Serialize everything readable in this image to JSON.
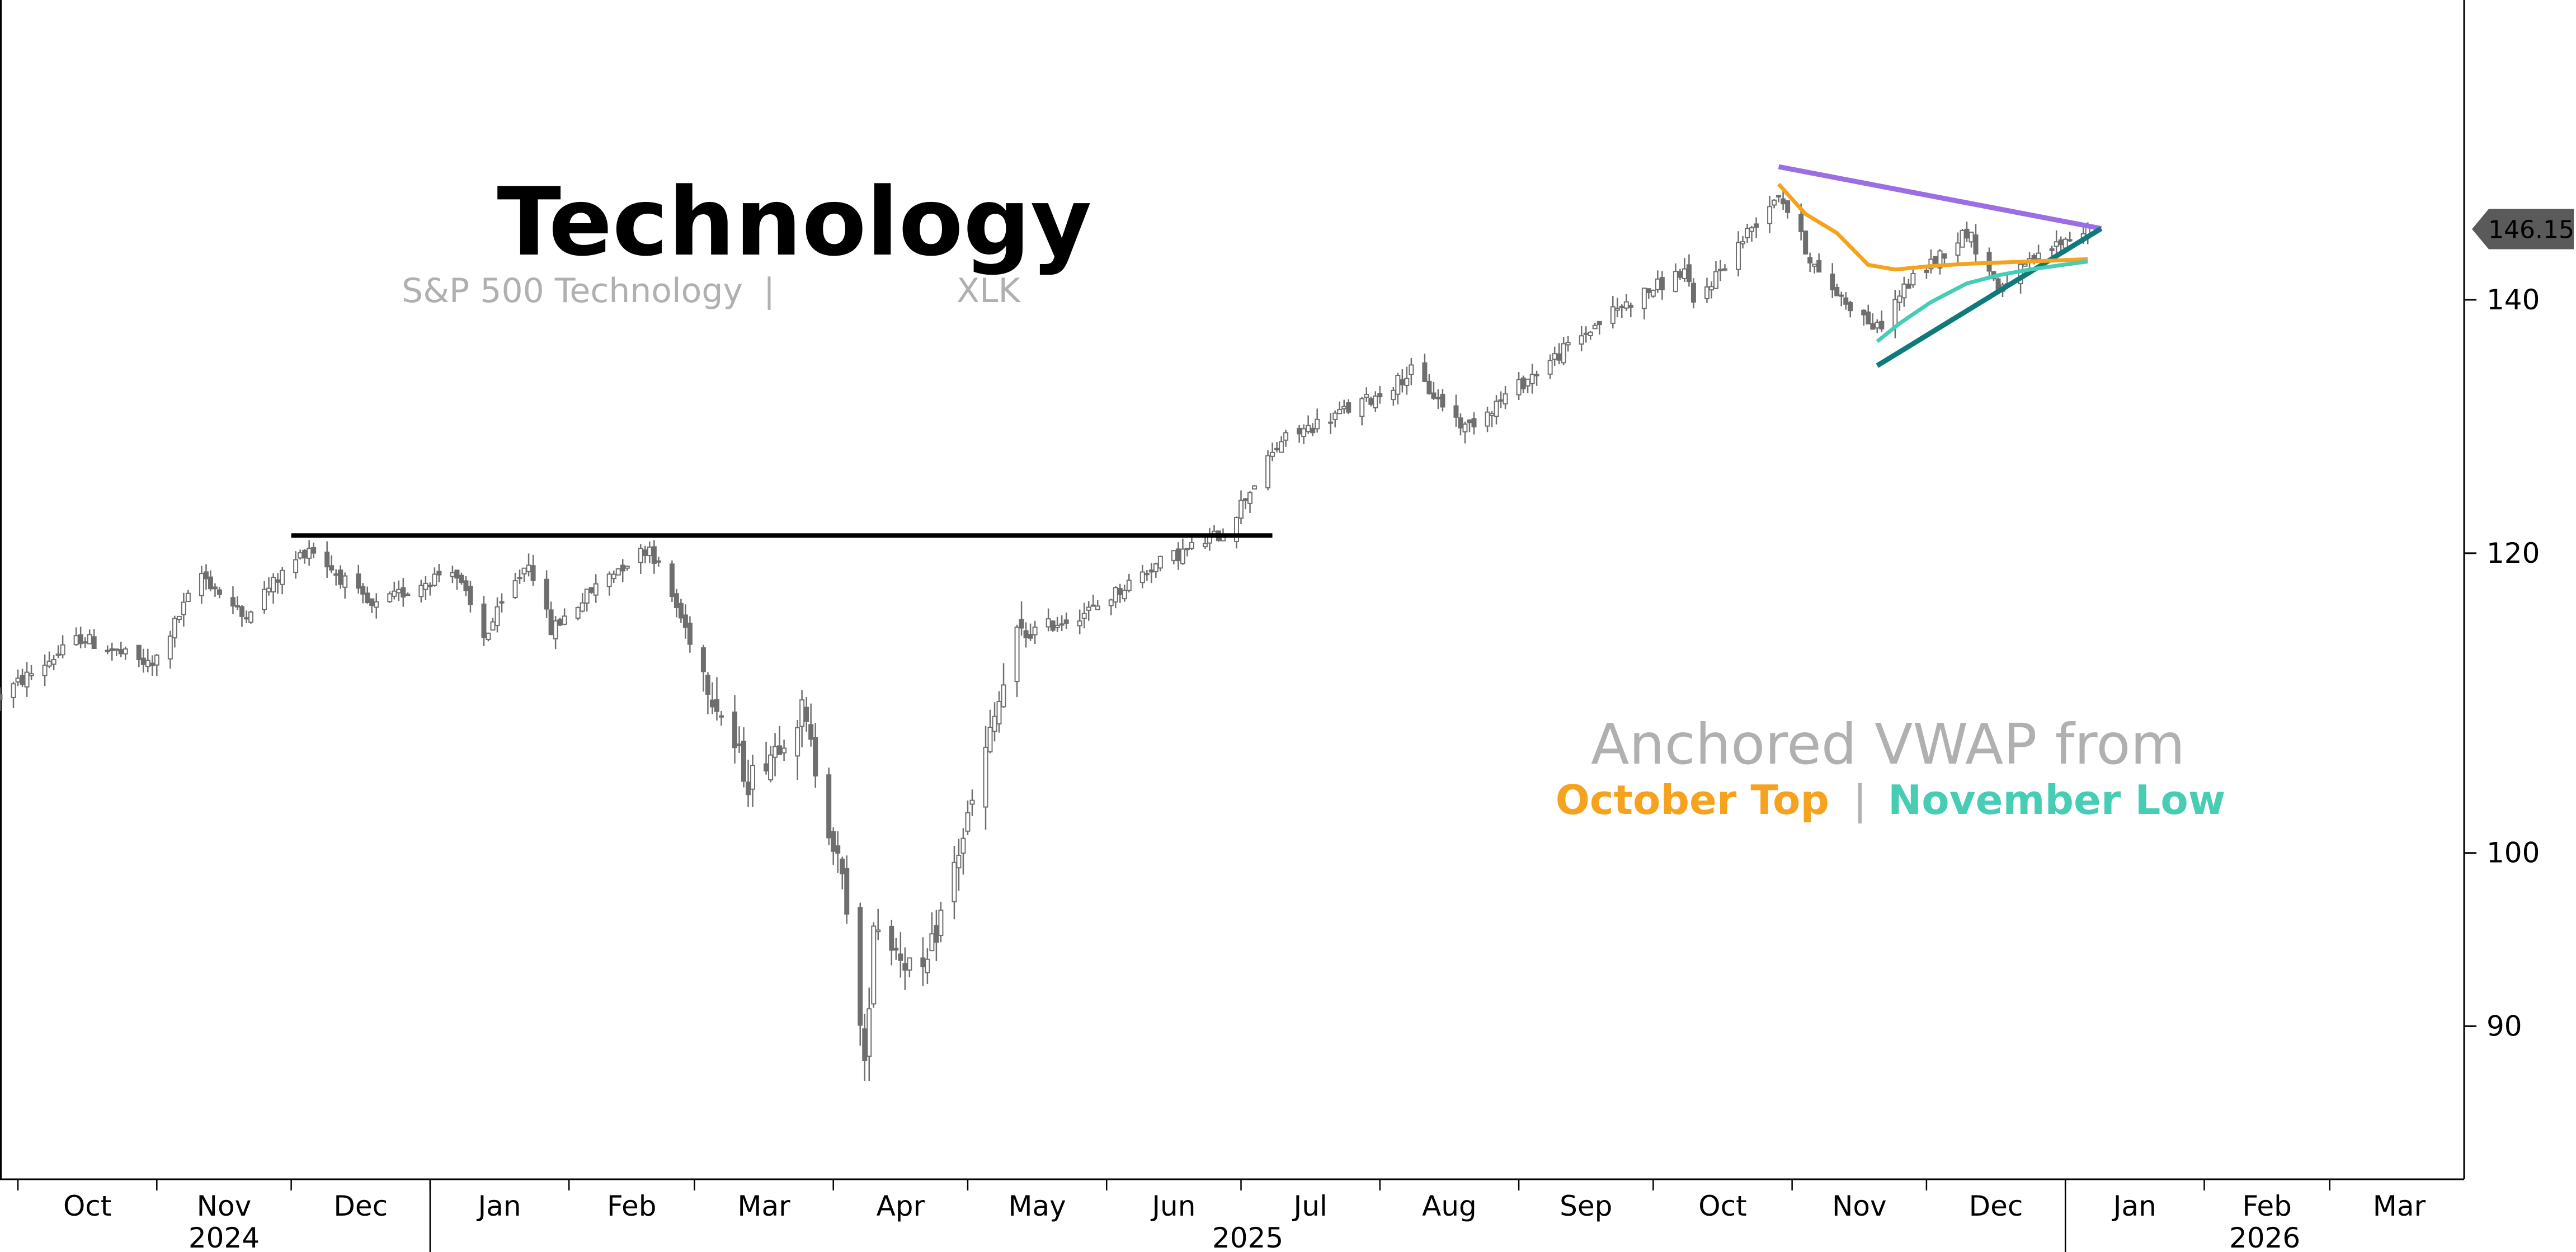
{
  "chart_data": {
    "type": "candlestick",
    "title": "Technology",
    "subtitle": "S&P 500 Technology",
    "subtitle_separator": "|",
    "ticker": "XLK",
    "annotation": {
      "line1": "Anchored VWAP from",
      "series_a": "October Top",
      "separator": "|",
      "series_b": "November Low",
      "color_a": "#f5a21e",
      "color_b": "#46cdb4"
    },
    "last_price_label": "146.15",
    "last_price": 146.15,
    "y_ticks": [
      "90",
      "100",
      "120",
      "140"
    ],
    "y_tick_values": [
      90,
      100,
      120,
      140
    ],
    "y_axis": {
      "scale": "log",
      "range": [
        82,
        168
      ],
      "position": "right"
    },
    "x_month_ticks": [
      "Oct",
      "Nov",
      "Dec",
      "Jan",
      "Feb",
      "Mar",
      "Apr",
      "May",
      "Jun",
      "Jul",
      "Aug",
      "Sep",
      "Oct",
      "Nov",
      "Dec",
      "Jan",
      "Feb",
      "Mar"
    ],
    "x_month_starts": [
      "2024-10-01",
      "2024-11-01",
      "2024-12-01",
      "2025-01-01",
      "2025-02-01",
      "2025-03-01",
      "2025-04-01",
      "2025-05-01",
      "2025-06-01",
      "2025-07-01",
      "2025-08-01",
      "2025-09-01",
      "2025-10-01",
      "2025-11-01",
      "2025-12-01",
      "2026-01-01",
      "2026-02-01",
      "2026-03-01",
      "2026-04-01"
    ],
    "x_year_labels": [
      {
        "label": "2024",
        "from": "2024-10-01",
        "to": "2025-01-01"
      },
      {
        "label": "2025",
        "from": "2025-01-01",
        "to": "2026-01-01"
      },
      {
        "label": "2026",
        "from": "2026-01-01",
        "to": "2026-04-01"
      }
    ],
    "x_range": [
      "2024-09-27",
      "2026-03-31"
    ],
    "grid": false,
    "price_anchors": [
      [
        "2024-09-27",
        110
      ],
      [
        "2024-10-15",
        114
      ],
      [
        "2024-10-31",
        112
      ],
      [
        "2024-11-11",
        118.5
      ],
      [
        "2024-11-20",
        115.5
      ],
      [
        "2024-12-05",
        120.5
      ],
      [
        "2024-12-19",
        116
      ],
      [
        "2025-01-06",
        119
      ],
      [
        "2025-01-13",
        114
      ],
      [
        "2025-01-23",
        119.5
      ],
      [
        "2025-01-28",
        114.5
      ],
      [
        "2025-02-10",
        118.5
      ],
      [
        "2025-02-19",
        120.5
      ],
      [
        "2025-03-04",
        111
      ],
      [
        "2025-03-13",
        104.5
      ],
      [
        "2025-03-25",
        109
      ],
      [
        "2025-04-04",
        97
      ],
      [
        "2025-04-08",
        87.5
      ],
      [
        "2025-04-10",
        96
      ],
      [
        "2025-04-21",
        92.5
      ],
      [
        "2025-05-02",
        103
      ],
      [
        "2025-05-12",
        114
      ],
      [
        "2025-05-29",
        116
      ],
      [
        "2025-06-11",
        119
      ],
      [
        "2025-06-27",
        121.5
      ],
      [
        "2025-07-10",
        128.5
      ],
      [
        "2025-07-31",
        132
      ],
      [
        "2025-08-08",
        134
      ],
      [
        "2025-08-20",
        129.5
      ],
      [
        "2025-09-05",
        134
      ],
      [
        "2025-09-22",
        139
      ],
      [
        "2025-10-08",
        142.5
      ],
      [
        "2025-10-10",
        139.5
      ],
      [
        "2025-10-29",
        149.5
      ],
      [
        "2025-11-07",
        142
      ],
      [
        "2025-11-20",
        137.5
      ],
      [
        "2025-11-26",
        141
      ],
      [
        "2025-12-10",
        146
      ],
      [
        "2025-12-17",
        141
      ],
      [
        "2025-12-31",
        145
      ],
      [
        "2026-01-06",
        146.15
      ]
    ],
    "resistance_line": {
      "level": 121.3,
      "from": "2024-12-01",
      "to": "2025-07-08",
      "color": "#000000"
    },
    "triangle_upper": {
      "from": [
        "2025-10-29",
        151.8
      ],
      "to": [
        "2026-01-09",
        146.2
      ],
      "color": "#9b6fe3"
    },
    "triangle_lower": {
      "from": [
        "2025-11-20",
        134.5
      ],
      "to": [
        "2026-01-09",
        146.2
      ],
      "color": "#0f7a7a"
    },
    "vwap_october_top": [
      [
        "2025-10-29",
        150.2
      ],
      [
        "2025-11-04",
        147.5
      ],
      [
        "2025-11-11",
        145.8
      ],
      [
        "2025-11-18",
        143
      ],
      [
        "2025-11-24",
        142.6
      ],
      [
        "2025-12-02",
        142.9
      ],
      [
        "2025-12-10",
        143.1
      ],
      [
        "2025-12-17",
        143.2
      ],
      [
        "2025-12-24",
        143.3
      ],
      [
        "2026-01-06",
        143.5
      ]
    ],
    "vwap_november_low": [
      [
        "2025-11-20",
        136.5
      ],
      [
        "2025-11-25",
        138
      ],
      [
        "2025-12-02",
        139.8
      ],
      [
        "2025-12-10",
        141.4
      ],
      [
        "2025-12-17",
        142.1
      ],
      [
        "2025-12-24",
        142.6
      ],
      [
        "2026-01-06",
        143.3
      ]
    ]
  }
}
